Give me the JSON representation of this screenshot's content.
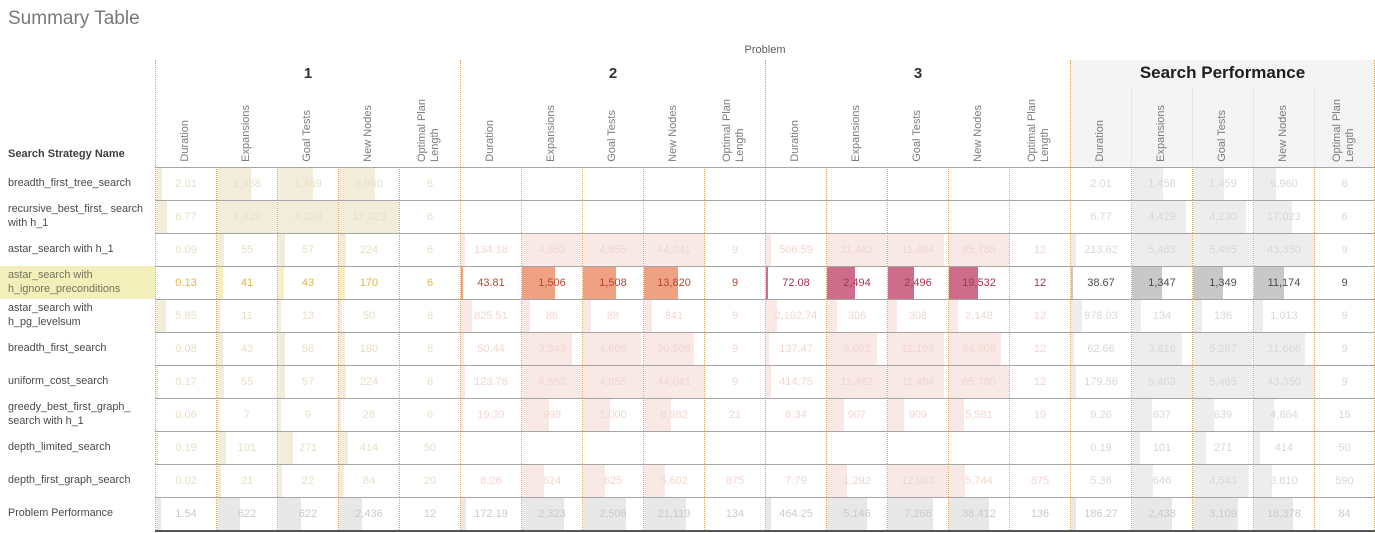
{
  "chart_data": {
    "type": "table",
    "title": "Summary Table",
    "axis_top_label": "Problem",
    "row_axis_label": "Search Strategy Name",
    "groups": [
      {
        "id": "p1",
        "label": "1"
      },
      {
        "id": "p2",
        "label": "2"
      },
      {
        "id": "p3",
        "label": "3"
      },
      {
        "id": "sp",
        "label": "Search Performance"
      }
    ],
    "measures": [
      "Duration",
      "Expansions",
      "Goal Tests",
      "New Nodes",
      "Optimal Plan Length"
    ],
    "rows": [
      {
        "name": "breadth_first_tree_search",
        "type": "normal",
        "cells": {
          "p1": [
            "2.01",
            "1,458",
            "1,459",
            "5,960",
            "6"
          ],
          "p2": [
            "",
            "",
            "",
            "",
            ""
          ],
          "p3": [
            "",
            "",
            "",
            "",
            ""
          ],
          "sp": [
            "2.01",
            "1,458",
            "1,459",
            "5,960",
            "6"
          ]
        }
      },
      {
        "name": "recursive_best_first_ search with h_1",
        "type": "normal",
        "cells": {
          "p1": [
            "6.77",
            "4,429",
            "4,230",
            "17,023",
            "6"
          ],
          "p2": [
            "",
            "",
            "",
            "",
            ""
          ],
          "p3": [
            "",
            "",
            "",
            "",
            ""
          ],
          "sp": [
            "6.77",
            "4,429",
            "4,230",
            "17,023",
            "6"
          ]
        }
      },
      {
        "name": "astar_search with h_1",
        "type": "normal",
        "cells": {
          "p1": [
            "0.09",
            "55",
            "57",
            "224",
            "6"
          ],
          "p2": [
            "134.18",
            "4,853",
            "4,855",
            "44,041",
            "9"
          ],
          "p3": [
            "506.59",
            "11,482",
            "11,484",
            "85,785",
            "12"
          ],
          "sp": [
            "213.62",
            "5,463",
            "5,465",
            "43,350",
            "9"
          ]
        }
      },
      {
        "name": "astar_search with h_ignore_preconditions",
        "type": "highlight",
        "cells": {
          "p1": [
            "0.13",
            "41",
            "43",
            "170",
            "6"
          ],
          "p2": [
            "43.81",
            "1,506",
            "1,508",
            "13,820",
            "9"
          ],
          "p3": [
            "72.08",
            "2,494",
            "2,496",
            "19,532",
            "12"
          ],
          "sp": [
            "38.67",
            "1,347",
            "1,349",
            "11,174",
            "9"
          ]
        }
      },
      {
        "name": "astar_search with h_pg_levelsum",
        "type": "normal",
        "cells": {
          "p1": [
            "5.85",
            "11",
            "13",
            "50",
            "6"
          ],
          "p2": [
            "825.51",
            "86",
            "88",
            "841",
            "9"
          ],
          "p3": [
            "2,102.74",
            "306",
            "308",
            "2,148",
            "12"
          ],
          "sp": [
            "978.03",
            "134",
            "136",
            "1,013",
            "9"
          ]
        }
      },
      {
        "name": "breadth_first_search",
        "type": "normal",
        "cells": {
          "p1": [
            "0.08",
            "43",
            "56",
            "180",
            "6"
          ],
          "p2": [
            "50.44",
            "3,343",
            "4,609",
            "30,509",
            "9"
          ],
          "p3": [
            "137.47",
            "8,062",
            "11,196",
            "64,308",
            "12"
          ],
          "sp": [
            "62.66",
            "3,816",
            "5,287",
            "31,666",
            "9"
          ]
        }
      },
      {
        "name": "uniform_cost_search",
        "type": "normal",
        "cells": {
          "p1": [
            "0.17",
            "55",
            "57",
            "224",
            "6"
          ],
          "p2": [
            "123.76",
            "4,853",
            "4,855",
            "44,041",
            "9"
          ],
          "p3": [
            "414.75",
            "11,482",
            "11,484",
            "85,785",
            "12"
          ],
          "sp": [
            "179.56",
            "5,463",
            "5,465",
            "43,350",
            "9"
          ]
        }
      },
      {
        "name": "greedy_best_first_graph_ search with h_1",
        "type": "normal",
        "cells": {
          "p1": [
            "0.06",
            "7",
            "9",
            "28",
            "6"
          ],
          "p2": [
            "19.39",
            "998",
            "1,000",
            "8,982",
            "21"
          ],
          "p3": [
            "8.34",
            "907",
            "909",
            "5,581",
            "19"
          ],
          "sp": [
            "9.26",
            "637",
            "639",
            "4,864",
            "15"
          ]
        }
      },
      {
        "name": "depth_limited_search",
        "type": "normal",
        "cells": {
          "p1": [
            "0.19",
            "101",
            "271",
            "414",
            "50"
          ],
          "p2": [
            "",
            "",
            "",
            "",
            ""
          ],
          "p3": [
            "",
            "",
            "",
            "",
            ""
          ],
          "sp": [
            "0.19",
            "101",
            "271",
            "414",
            "50"
          ]
        }
      },
      {
        "name": "depth_first_graph_search",
        "type": "normal",
        "cells": {
          "p1": [
            "0.02",
            "21",
            "22",
            "84",
            "20"
          ],
          "p2": [
            "8.26",
            "624",
            "625",
            "5,602",
            "875"
          ],
          "p3": [
            "7.79",
            "1,292",
            "12,983",
            "5,744",
            "875"
          ],
          "sp": [
            "5.36",
            "646",
            "4,543",
            "3,810",
            "590"
          ]
        }
      },
      {
        "name": "Problem Performance",
        "type": "total",
        "cells": {
          "p1": [
            "1.54",
            "622",
            "622",
            "2,436",
            "12"
          ],
          "p2": [
            "172.19",
            "2,323",
            "2,506",
            "21,119",
            "134"
          ],
          "p3": [
            "464.25",
            "5,146",
            "7,266",
            "38,412",
            "136"
          ],
          "sp": [
            "186.27",
            "2,438",
            "3,109",
            "18,378",
            "84"
          ]
        }
      }
    ],
    "colors": {
      "grid_dotted": "#eda24c",
      "row_separator": "#a5a5a5",
      "highlight_row_bg": "#f3efba",
      "p1_bar": "#f2eddb",
      "p2_p3_bar": "#f8e8e6",
      "sp_bar": "#ededed",
      "highlight_p2_bar": "#efa183",
      "highlight_p3_bar": "#ce6d8b",
      "highlight_sp_bar": "#c8c8c8",
      "total_bar": "#e8e8e8",
      "title_text": "#797979"
    }
  }
}
